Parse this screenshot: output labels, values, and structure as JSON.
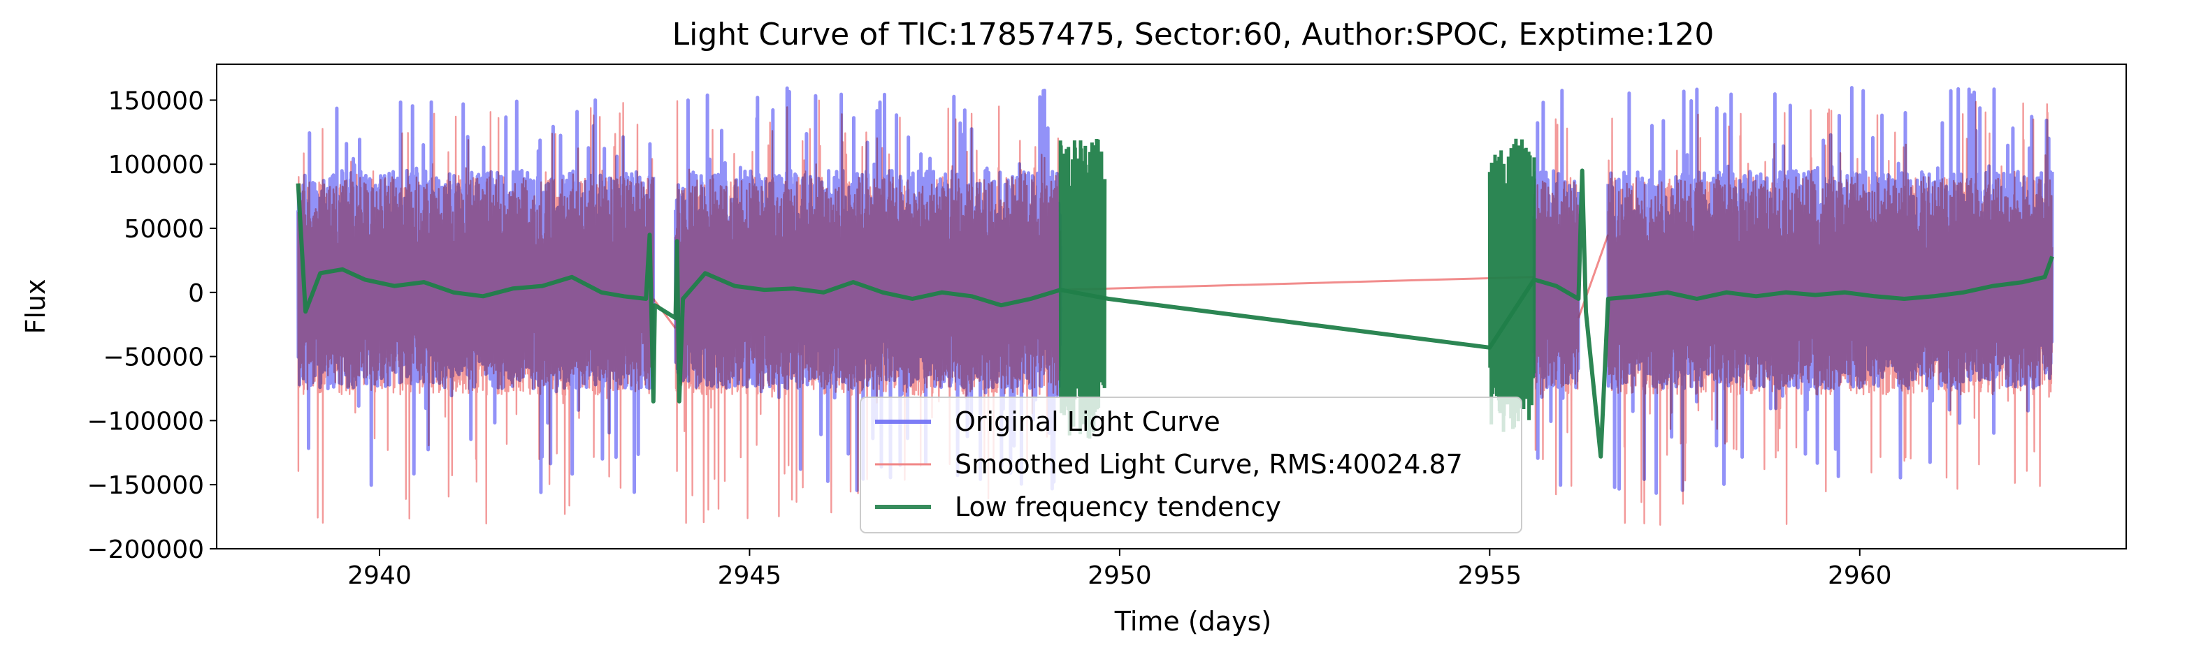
{
  "chart_data": {
    "type": "line",
    "title": "Light Curve of TIC:17857475, Sector:60, Author:SPOC, Exptime:120",
    "xlabel": "Time (days)",
    "ylabel": "Flux",
    "xlim": [
      2937.8,
      2963.6
    ],
    "ylim": [
      -200000,
      178000
    ],
    "xticks": [
      2940,
      2945,
      2950,
      2955,
      2960
    ],
    "xtick_labels": [
      "2940",
      "2945",
      "2950",
      "2955",
      "2960"
    ],
    "yticks": [
      150000,
      100000,
      50000,
      0,
      -50000,
      -100000,
      -150000,
      -200000
    ],
    "ytick_labels": [
      "150000",
      "100000",
      "50000",
      "0",
      "−50000",
      "−100000",
      "−150000",
      "−200000"
    ],
    "grid": false,
    "legend_position": "lower center",
    "segments": [
      [
        2938.9,
        2943.7
      ],
      [
        2944.0,
        2949.2
      ],
      [
        2955.6,
        2956.2
      ],
      [
        2956.6,
        2962.6
      ]
    ],
    "green_only_segments": [
      [
        2949.2,
        2949.8
      ],
      [
        2955.0,
        2955.6
      ]
    ],
    "series": [
      {
        "name": "Original Light Curve",
        "color": "#6e6ef5",
        "style": "oscillating",
        "typical_range": [
          -75000,
          95000
        ],
        "extreme_range": [
          -157000,
          160000
        ]
      },
      {
        "name": "Smoothed Light Curve, RMS:40024.87",
        "color": "#f08080",
        "style": "oscillating",
        "typical_range": [
          -80000,
          90000
        ],
        "extreme_range": [
          -183000,
          150000
        ],
        "gap_bridges": [
          {
            "x": [
              2943.7,
              2944.0
            ],
            "y": [
              -5000,
              -28000
            ]
          },
          {
            "x": [
              2949.2,
              2955.6
            ],
            "y": [
              2000,
              12000
            ]
          },
          {
            "x": [
              2956.2,
              2956.6
            ],
            "y": [
              -20000,
              45000
            ]
          }
        ]
      },
      {
        "name": "Low frequency tendency",
        "color": "#217f4a",
        "style": "trend",
        "trend_points": [
          {
            "x": 2938.9,
            "y": 85000
          },
          {
            "x": 2939.0,
            "y": -15000
          },
          {
            "x": 2939.2,
            "y": 15000
          },
          {
            "x": 2939.5,
            "y": 18000
          },
          {
            "x": 2939.8,
            "y": 10000
          },
          {
            "x": 2940.2,
            "y": 5000
          },
          {
            "x": 2940.6,
            "y": 8000
          },
          {
            "x": 2941.0,
            "y": 0
          },
          {
            "x": 2941.4,
            "y": -3000
          },
          {
            "x": 2941.8,
            "y": 3000
          },
          {
            "x": 2942.2,
            "y": 5000
          },
          {
            "x": 2942.6,
            "y": 12000
          },
          {
            "x": 2943.0,
            "y": 0
          },
          {
            "x": 2943.3,
            "y": -3000
          },
          {
            "x": 2943.6,
            "y": -5000
          },
          {
            "x": 2943.65,
            "y": 45000
          },
          {
            "x": 2943.7,
            "y": -85000
          },
          {
            "x": 2943.72,
            "y": -10000
          },
          {
            "x": 2944.0,
            "y": -20000
          },
          {
            "x": 2944.02,
            "y": 40000
          },
          {
            "x": 2944.05,
            "y": -85000
          },
          {
            "x": 2944.1,
            "y": -5000
          },
          {
            "x": 2944.4,
            "y": 15000
          },
          {
            "x": 2944.8,
            "y": 5000
          },
          {
            "x": 2945.2,
            "y": 2000
          },
          {
            "x": 2945.6,
            "y": 3000
          },
          {
            "x": 2946.0,
            "y": 0
          },
          {
            "x": 2946.4,
            "y": 8000
          },
          {
            "x": 2946.8,
            "y": 0
          },
          {
            "x": 2947.2,
            "y": -5000
          },
          {
            "x": 2947.6,
            "y": 0
          },
          {
            "x": 2948.0,
            "y": -3000
          },
          {
            "x": 2948.4,
            "y": -10000
          },
          {
            "x": 2948.8,
            "y": -5000
          },
          {
            "x": 2949.2,
            "y": 2000
          },
          {
            "x": 2949.85,
            "y": -5000
          },
          {
            "x": 2955.0,
            "y": -43000
          },
          {
            "x": 2955.6,
            "y": 10000
          },
          {
            "x": 2955.9,
            "y": 5000
          },
          {
            "x": 2956.2,
            "y": -5000
          },
          {
            "x": 2956.25,
            "y": 95000
          },
          {
            "x": 2956.3,
            "y": -15000
          },
          {
            "x": 2956.5,
            "y": -128000
          },
          {
            "x": 2956.6,
            "y": -5000
          },
          {
            "x": 2957.0,
            "y": -3000
          },
          {
            "x": 2957.4,
            "y": 0
          },
          {
            "x": 2957.8,
            "y": -5000
          },
          {
            "x": 2958.2,
            "y": 0
          },
          {
            "x": 2958.6,
            "y": -3000
          },
          {
            "x": 2959.0,
            "y": 0
          },
          {
            "x": 2959.4,
            "y": -2000
          },
          {
            "x": 2959.8,
            "y": 0
          },
          {
            "x": 2960.2,
            "y": -3000
          },
          {
            "x": 2960.6,
            "y": -5000
          },
          {
            "x": 2961.0,
            "y": -3000
          },
          {
            "x": 2961.4,
            "y": 0
          },
          {
            "x": 2961.8,
            "y": 5000
          },
          {
            "x": 2962.2,
            "y": 8000
          },
          {
            "x": 2962.5,
            "y": 12000
          },
          {
            "x": 2962.6,
            "y": 28000
          }
        ]
      }
    ]
  }
}
